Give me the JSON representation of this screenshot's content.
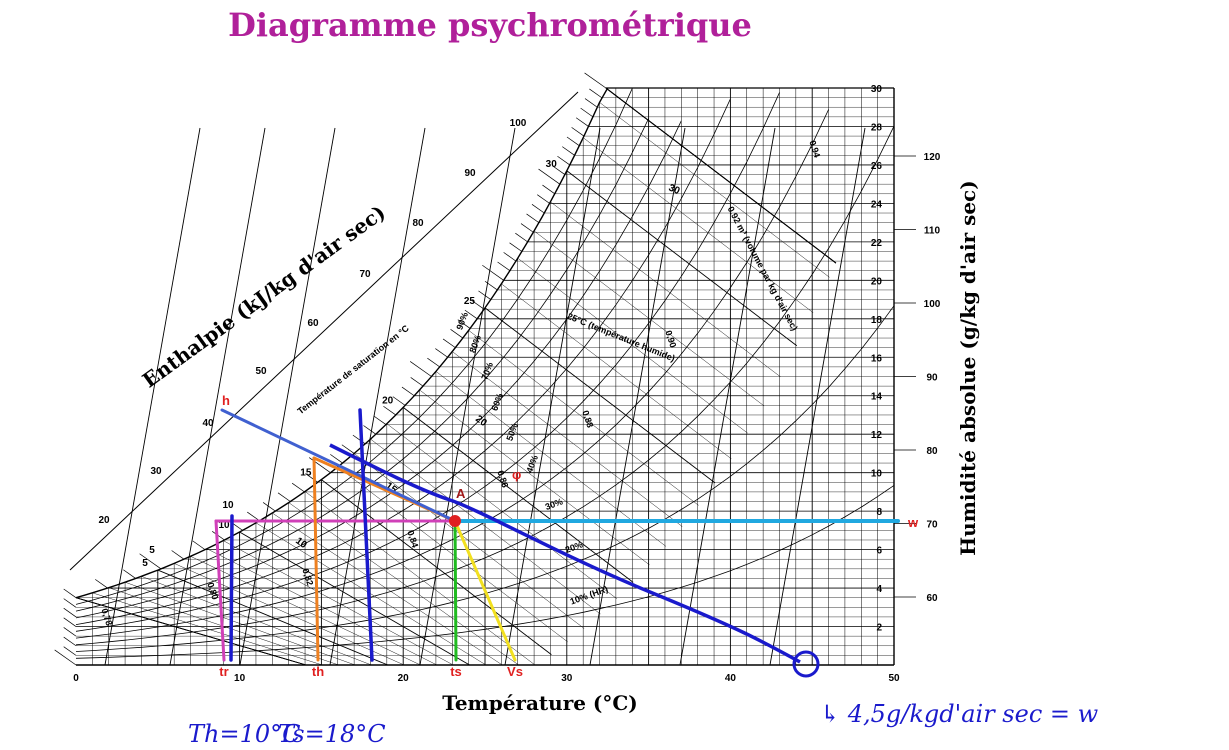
{
  "title": "Diagramme psychrométrique",
  "x_axis_label": "Température (°C)",
  "left_axis_label": "Enthalpie (kJ/kg d'air sec)",
  "right_axis_label": "Humidité absolue (g/kg d'air sec)",
  "temperature_ticks": [
    "0",
    "10",
    "20",
    "30",
    "40",
    "50"
  ],
  "humidity_ticks": [
    "2",
    "4",
    "6",
    "8",
    "10",
    "12",
    "14",
    "16",
    "18",
    "20",
    "22",
    "24",
    "26",
    "28",
    "30"
  ],
  "right_enthalpy_ticks": [
    "60",
    "70",
    "80",
    "90",
    "100",
    "110",
    "120"
  ],
  "enthalpy_ticks": [
    "5",
    "10",
    "20",
    "30",
    "40",
    "50",
    "60",
    "70",
    "80",
    "90",
    "100"
  ],
  "saturation_temp_ticks": [
    "5",
    "10",
    "15",
    "20",
    "25",
    "30"
  ],
  "saturation_label": "Température de saturation en °C",
  "wet_bulb_ticks": [
    "10",
    "15",
    "20"
  ],
  "wet_bulb_label": "25°C (température humide)",
  "wet_bulb_30": "30",
  "rh_labels": [
    "90%",
    "80%",
    "70%",
    "60%",
    "50%",
    "40%",
    "30%",
    "20%",
    "10% (HR)"
  ],
  "volume_labels": [
    "0,94",
    "0.92 m³ (volume par kg d'air sec)",
    "0,90",
    "0,88",
    "0,86",
    "0,84",
    "0,82",
    "0,80",
    "0,78"
  ],
  "point_label": "A",
  "phi_label": "φ",
  "markers": {
    "h": "h",
    "tr": "tr",
    "th": "th",
    "ts": "ts",
    "vs": "Vs",
    "w": "w"
  },
  "handwritten": {
    "th_note": "Th=10°C",
    "ts_note": "Ts=18°C",
    "w_note": "↳ 4,5g/kgd'air sec = w"
  },
  "colors": {
    "title": "#b0209a",
    "magenta_line": "#d040b8",
    "blue_ink": "#1a1acc",
    "orange_line": "#ee8020",
    "green_line": "#20bb20",
    "yellow_line": "#f2e020",
    "cyan_line": "#20a8e0",
    "enthalpy_line": "#4060d0",
    "point": "#e02020",
    "marker_text": "#e02020",
    "point_label": "#a01818"
  }
}
